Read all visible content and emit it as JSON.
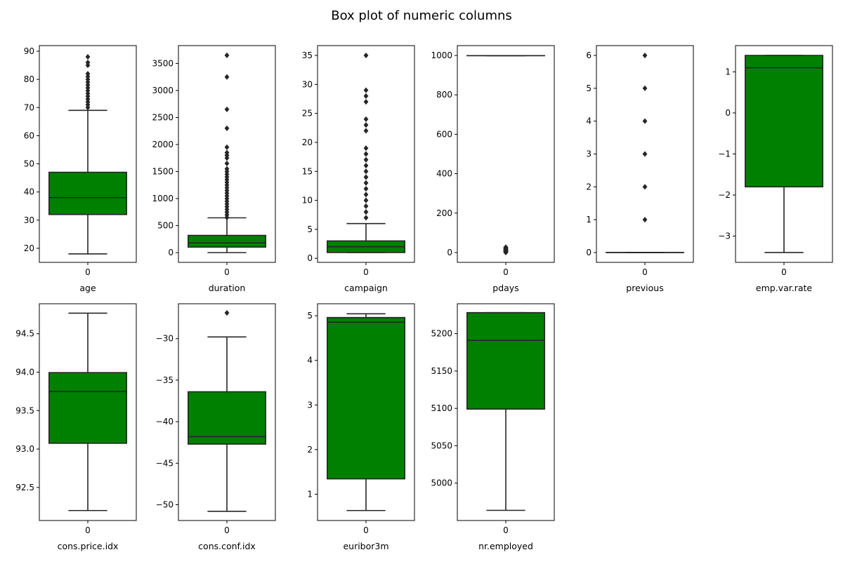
{
  "title": "Box plot of numeric columns",
  "colors": {
    "box": "#008000",
    "line": "#262626",
    "axis": "#000000",
    "background": "#ffffff"
  },
  "chart_data": [
    {
      "type": "box",
      "xlabel": "age",
      "category": "0",
      "ylim": [
        15,
        92
      ],
      "yticks": [
        20,
        30,
        40,
        50,
        60,
        70,
        80,
        90
      ],
      "tick_labels": [
        "20",
        "30",
        "40",
        "50",
        "60",
        "70",
        "80",
        "90"
      ],
      "whisker_low": 18,
      "q1": 32,
      "median": 38,
      "q3": 47,
      "whisker_high": 69,
      "outliers": [
        70,
        71,
        72,
        73,
        74,
        75,
        76,
        77,
        78,
        79,
        80,
        81,
        82,
        85,
        86,
        88
      ]
    },
    {
      "type": "box",
      "xlabel": "duration",
      "category": "0",
      "ylim": [
        -180,
        3830
      ],
      "yticks": [
        0,
        500,
        1000,
        1500,
        2000,
        2500,
        3000,
        3500
      ],
      "tick_labels": [
        "0",
        "500",
        "1000",
        "1500",
        "2000",
        "2500",
        "3000",
        "3500"
      ],
      "whisker_low": 0,
      "q1": 102,
      "median": 180,
      "q3": 319,
      "whisker_high": 644,
      "outliers": [
        650,
        700,
        750,
        800,
        850,
        900,
        950,
        1000,
        1050,
        1100,
        1150,
        1200,
        1250,
        1300,
        1350,
        1400,
        1450,
        1500,
        1550,
        1650,
        1750,
        1800,
        1850,
        1950,
        2300,
        2650,
        3250,
        3650
      ]
    },
    {
      "type": "box",
      "xlabel": "campaign",
      "category": "0",
      "ylim": [
        -0.7,
        36.7
      ],
      "yticks": [
        0,
        5,
        10,
        15,
        20,
        25,
        30,
        35
      ],
      "tick_labels": [
        "0",
        "5",
        "10",
        "15",
        "20",
        "25",
        "30",
        "35"
      ],
      "whisker_low": 1,
      "q1": 1,
      "median": 2,
      "q3": 3,
      "whisker_high": 6,
      "outliers": [
        7,
        8,
        9,
        10,
        11,
        12,
        13,
        14,
        15,
        16,
        17,
        18,
        19,
        22,
        23,
        24,
        27,
        28,
        29,
        35
      ]
    },
    {
      "type": "box",
      "xlabel": "pdays",
      "category": "0",
      "ylim": [
        -50,
        1050
      ],
      "yticks": [
        0,
        200,
        400,
        600,
        800,
        1000
      ],
      "tick_labels": [
        "0",
        "200",
        "400",
        "600",
        "800",
        "1000"
      ],
      "whisker_low": 999,
      "q1": 999,
      "median": 999,
      "q3": 999,
      "whisker_high": 999,
      "outliers": [
        0,
        1,
        2,
        3,
        4,
        5,
        6,
        7,
        8,
        9,
        10,
        11,
        12,
        13,
        14,
        15,
        16,
        17,
        18,
        19,
        20,
        21,
        22,
        25,
        26,
        27
      ]
    },
    {
      "type": "box",
      "xlabel": "previous",
      "category": "0",
      "ylim": [
        -0.3,
        6.3
      ],
      "yticks": [
        0,
        1,
        2,
        3,
        4,
        5,
        6
      ],
      "tick_labels": [
        "0",
        "1",
        "2",
        "3",
        "4",
        "5",
        "6"
      ],
      "whisker_low": 0,
      "q1": 0,
      "median": 0,
      "q3": 0,
      "whisker_high": 0,
      "outliers": [
        1,
        2,
        3,
        4,
        5,
        6
      ]
    },
    {
      "type": "box",
      "xlabel": "emp.var.rate",
      "category": "0",
      "ylim": [
        -3.64,
        1.64
      ],
      "yticks": [
        -3,
        -2,
        -1,
        0,
        1
      ],
      "tick_labels": [
        "−3",
        "−2",
        "−1",
        "0",
        "1"
      ],
      "whisker_low": -3.4,
      "q1": -1.8,
      "median": 1.1,
      "q3": 1.4,
      "whisker_high": 1.4,
      "outliers": []
    },
    {
      "type": "box",
      "xlabel": "cons.price.idx",
      "category": "0",
      "ylim": [
        92.07,
        94.89
      ],
      "yticks": [
        92.5,
        93.0,
        93.5,
        94.0,
        94.5
      ],
      "tick_labels": [
        "92.5",
        "93.0",
        "93.5",
        "94.0",
        "94.5"
      ],
      "whisker_low": 92.2,
      "q1": 93.075,
      "median": 93.749,
      "q3": 93.994,
      "whisker_high": 94.767,
      "outliers": []
    },
    {
      "type": "box",
      "xlabel": "cons.conf.idx",
      "category": "0",
      "ylim": [
        -51.9,
        -25.8
      ],
      "yticks": [
        -50,
        -45,
        -40,
        -35,
        -30
      ],
      "tick_labels": [
        "−50",
        "−45",
        "−40",
        "−35",
        "−30"
      ],
      "whisker_low": -50.8,
      "q1": -42.7,
      "median": -41.8,
      "q3": -36.4,
      "whisker_high": -29.8,
      "outliers": [
        -26.9
      ]
    },
    {
      "type": "box",
      "xlabel": "euribor3m",
      "category": "0",
      "ylim": [
        0.41,
        5.27
      ],
      "yticks": [
        1,
        2,
        3,
        4,
        5
      ],
      "tick_labels": [
        "1",
        "2",
        "3",
        "4",
        "5"
      ],
      "whisker_low": 0.634,
      "q1": 1.344,
      "median": 4.857,
      "q3": 4.961,
      "whisker_high": 5.045,
      "outliers": []
    },
    {
      "type": "box",
      "xlabel": "nr.employed",
      "category": "0",
      "ylim": [
        4950,
        5240
      ],
      "yticks": [
        5000,
        5050,
        5100,
        5150,
        5200
      ],
      "tick_labels": [
        "5000",
        "5050",
        "5100",
        "5150",
        "5200"
      ],
      "whisker_low": 4963.6,
      "q1": 5099.1,
      "median": 5191,
      "q3": 5228.1,
      "whisker_high": 5228.1,
      "outliers": []
    }
  ]
}
